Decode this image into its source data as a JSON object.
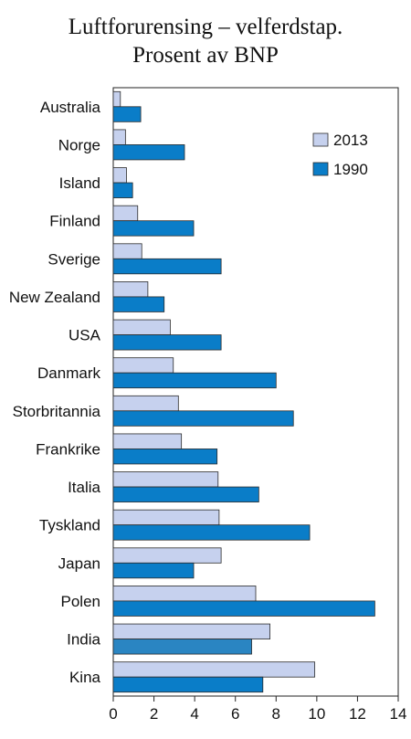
{
  "chart_data": {
    "type": "bar",
    "orientation": "horizontal",
    "title": "Luftforurensing – velferdstap.",
    "subtitle": "Prosent av BNP",
    "categories": [
      "Australia",
      "Norge",
      "Island",
      "Finland",
      "Sverige",
      "New Zealand",
      "USA",
      "Danmark",
      "Storbritannia",
      "Frankrike",
      "Italia",
      "Tyskland",
      "Japan",
      "Polen",
      "India",
      "Kina"
    ],
    "series": [
      {
        "name": "2013",
        "color": "#c6d1ee",
        "values": [
          0.35,
          0.6,
          0.65,
          1.2,
          1.4,
          1.7,
          2.8,
          2.95,
          3.2,
          3.35,
          5.15,
          5.2,
          5.3,
          7.0,
          7.7,
          9.9
        ]
      },
      {
        "name": "1990",
        "color": "#0a7dc8",
        "values": [
          1.35,
          3.5,
          0.95,
          3.95,
          5.3,
          2.5,
          5.3,
          8.0,
          8.85,
          5.1,
          7.15,
          9.65,
          3.95,
          12.85,
          6.8,
          7.35
        ]
      }
    ],
    "highlight": {
      "category": "India",
      "series": "1990",
      "color": "#2a85c2"
    },
    "xlim": [
      0,
      14
    ],
    "xticks": [
      "0",
      "2",
      "4",
      "6",
      "8",
      "10",
      "12",
      "14"
    ],
    "xlabel": "",
    "ylabel": "",
    "grid": false,
    "legend_position": "top-right"
  }
}
